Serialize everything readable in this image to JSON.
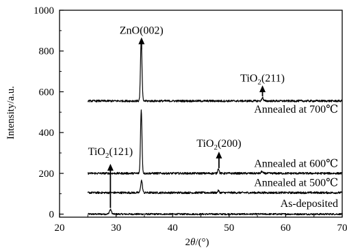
{
  "chart_data": {
    "type": "line",
    "xlabel_parts": {
      "base": "2",
      "italic": "θ",
      "tail": "/(°)"
    },
    "ylabel": "Intensity/a.u.",
    "xlim": [
      20,
      70
    ],
    "ylim": [
      -15,
      1000
    ],
    "x_ticks": [
      20,
      30,
      40,
      50,
      60,
      70
    ],
    "y_ticks": [
      0,
      200,
      400,
      600,
      800,
      1000
    ],
    "grid": false,
    "series": [
      {
        "name": "As-deposited",
        "baseline": 0,
        "noise": 4,
        "peaks": [
          {
            "x": 29.0,
            "h": 22,
            "w": 0.18
          }
        ]
      },
      {
        "name": "Annealed at 500℃",
        "baseline": 105,
        "noise": 5,
        "peaks": [
          {
            "x": 34.5,
            "h": 60,
            "w": 0.15
          },
          {
            "x": 48.1,
            "h": 10,
            "w": 0.12
          }
        ]
      },
      {
        "name": "Annealed at 600℃",
        "baseline": 200,
        "noise": 5,
        "peaks": [
          {
            "x": 34.45,
            "h": 310,
            "w": 0.13
          },
          {
            "x": 48.1,
            "h": 25,
            "w": 0.12
          },
          {
            "x": 55.8,
            "h": 10,
            "w": 0.12
          }
        ]
      },
      {
        "name": "Annealed at 700℃",
        "baseline": 555,
        "noise": 5,
        "peaks": [
          {
            "x": 34.45,
            "h": 300,
            "w": 0.13
          },
          {
            "x": 55.9,
            "h": 18,
            "w": 0.12
          }
        ]
      }
    ],
    "annotations": [
      {
        "text": "ZnO(002)",
        "x": 34.5,
        "arrow_from": 808,
        "arrow_to": 860,
        "label_y": 885
      },
      {
        "text": "TiO",
        "sub": "2",
        "tail": "(211)",
        "x": 55.9,
        "arrow_from": 578,
        "arrow_to": 625,
        "label_y": 650
      },
      {
        "text": "TiO",
        "sub": "2",
        "tail": "(200)",
        "x": 48.2,
        "arrow_from": 225,
        "arrow_to": 300,
        "label_y": 330
      },
      {
        "text": "TiO",
        "sub": "2",
        "tail": "(121)",
        "x": 29.0,
        "arrow_from": 30,
        "arrow_to": 240,
        "label_y": 290
      }
    ],
    "series_labels": [
      {
        "text": "Annealed at 700℃",
        "y": 498
      },
      {
        "text": "Annealed at 600℃",
        "y": 232
      },
      {
        "text": "Annealed at 500℃",
        "y": 138
      },
      {
        "text": "As-deposited",
        "y": 35
      }
    ]
  }
}
